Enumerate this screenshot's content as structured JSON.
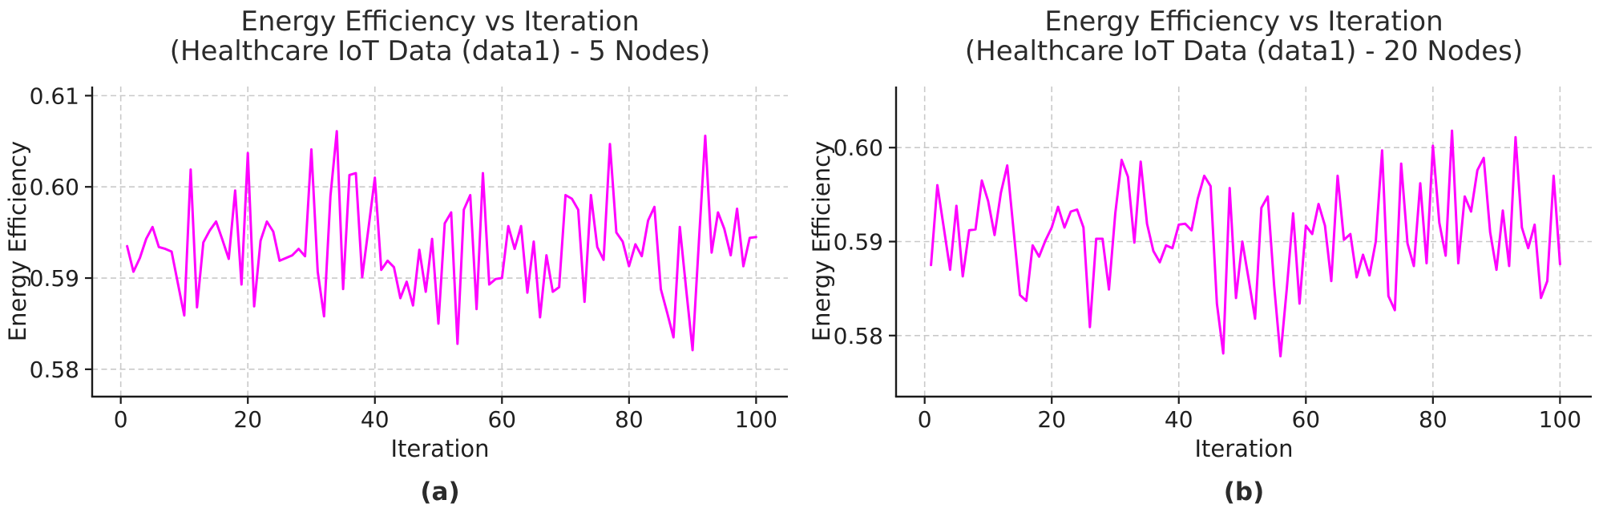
{
  "figure": {
    "background": "#ffffff",
    "line_color": "#FF00FF",
    "grid_color": "#c9c9c9",
    "axis_color": "#1a1a1a",
    "text_color": "#1f1f1f"
  },
  "chart_data": [
    {
      "id": "a",
      "type": "line",
      "title_line1": "Energy Efficiency vs Iteration",
      "title_line2": "(Healthcare IoT Data (data1) - 5 Nodes)",
      "xlabel": "Iteration",
      "ylabel": "Energy Efficiency",
      "caption": "(a)",
      "legend": "none",
      "grid": true,
      "xticks": [
        0,
        20,
        40,
        60,
        80,
        100
      ],
      "yticks": [
        0.58,
        0.59,
        0.6,
        0.61
      ],
      "ytick_labels": [
        "0.58",
        "0.59",
        "0.60",
        "0.61"
      ],
      "xlim": [
        -4.5,
        105
      ],
      "ylim": [
        0.577,
        0.611
      ],
      "x_start": 1,
      "values": [
        0.5935,
        0.5907,
        0.5922,
        0.5943,
        0.5956,
        0.5934,
        0.5932,
        0.5929,
        0.5894,
        0.5859,
        0.6019,
        0.5868,
        0.5939,
        0.5952,
        0.5962,
        0.5942,
        0.5921,
        0.5996,
        0.5893,
        0.6037,
        0.5869,
        0.5941,
        0.5962,
        0.5951,
        0.5919,
        0.5922,
        0.5925,
        0.5932,
        0.5924,
        0.6041,
        0.5907,
        0.5858,
        0.599,
        0.6061,
        0.5888,
        0.6013,
        0.6015,
        0.5901,
        0.5955,
        0.601,
        0.5909,
        0.5919,
        0.5912,
        0.5878,
        0.5896,
        0.587,
        0.5931,
        0.5885,
        0.5943,
        0.585,
        0.596,
        0.5972,
        0.5828,
        0.5975,
        0.5991,
        0.5866,
        0.6015,
        0.5893,
        0.5899,
        0.59,
        0.5957,
        0.5932,
        0.5957,
        0.5884,
        0.594,
        0.5857,
        0.5925,
        0.5885,
        0.589,
        0.5991,
        0.5987,
        0.5975,
        0.5874,
        0.5991,
        0.5934,
        0.592,
        0.6047,
        0.595,
        0.594,
        0.5913,
        0.5937,
        0.5924,
        0.5963,
        0.5978,
        0.5888,
        0.5862,
        0.5835,
        0.5956,
        0.5887,
        0.5821,
        0.594,
        0.6056,
        0.5928,
        0.5972,
        0.5954,
        0.5925,
        0.5976,
        0.5913,
        0.5944,
        0.5945
      ]
    },
    {
      "id": "b",
      "type": "line",
      "title_line1": "Energy Efficiency vs Iteration",
      "title_line2": "(Healthcare IoT Data (data1) - 20 Nodes)",
      "xlabel": "Iteration",
      "ylabel": "Energy Efficiency",
      "caption": "(b)",
      "legend": "none",
      "grid": true,
      "xticks": [
        0,
        20,
        40,
        60,
        80,
        100
      ],
      "yticks": [
        0.58,
        0.59,
        0.6
      ],
      "ytick_labels": [
        "0.58",
        "0.59",
        "0.60"
      ],
      "xlim": [
        -4.5,
        105
      ],
      "ylim": [
        0.5735,
        0.6065
      ],
      "x_start": 1,
      "values": [
        0.5875,
        0.596,
        0.5915,
        0.587,
        0.5938,
        0.5863,
        0.5912,
        0.5913,
        0.5965,
        0.5943,
        0.5907,
        0.5952,
        0.5981,
        0.5912,
        0.5843,
        0.5837,
        0.5896,
        0.5884,
        0.5901,
        0.5915,
        0.5937,
        0.5915,
        0.5932,
        0.5934,
        0.5915,
        0.5809,
        0.5903,
        0.5903,
        0.5849,
        0.593,
        0.5987,
        0.5969,
        0.5899,
        0.5985,
        0.5919,
        0.589,
        0.5878,
        0.5896,
        0.5893,
        0.5918,
        0.5919,
        0.5912,
        0.5946,
        0.597,
        0.5959,
        0.5834,
        0.5781,
        0.5957,
        0.584,
        0.59,
        0.586,
        0.5818,
        0.5936,
        0.5948,
        0.5853,
        0.5778,
        0.585,
        0.593,
        0.5834,
        0.5917,
        0.5908,
        0.594,
        0.5917,
        0.5858,
        0.597,
        0.5902,
        0.5908,
        0.5862,
        0.5886,
        0.5864,
        0.59,
        0.5997,
        0.5842,
        0.5827,
        0.5983,
        0.5898,
        0.5874,
        0.5962,
        0.5877,
        0.6002,
        0.592,
        0.5885,
        0.6018,
        0.5877,
        0.5948,
        0.5932,
        0.5976,
        0.5989,
        0.591,
        0.587,
        0.5933,
        0.5874,
        0.6011,
        0.5915,
        0.5893,
        0.5918,
        0.584,
        0.5858,
        0.597,
        0.5876
      ]
    }
  ]
}
